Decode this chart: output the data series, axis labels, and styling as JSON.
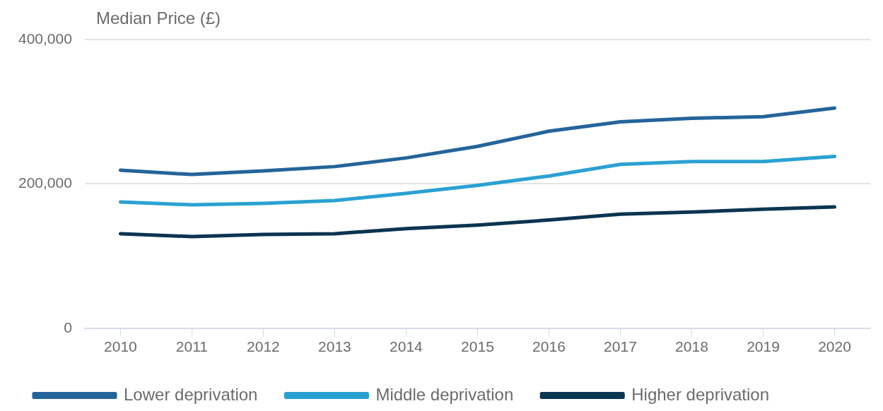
{
  "chart_data": {
    "type": "line",
    "ylabel": "Median Price (£)",
    "categories": [
      "2010",
      "2011",
      "2012",
      "2013",
      "2014",
      "2015",
      "2016",
      "2017",
      "2018",
      "2019",
      "2020"
    ],
    "series": [
      {
        "name": "Lower deprivation",
        "color": "#24649a",
        "values": [
          219000,
          213000,
          218000,
          224000,
          236000,
          252000,
          273000,
          286000,
          291000,
          293000,
          305000
        ]
      },
      {
        "name": "Middle deprivation",
        "color": "#2aa1d3",
        "values": [
          175000,
          171000,
          173000,
          177000,
          187000,
          198000,
          211000,
          227000,
          231000,
          231000,
          238000
        ]
      },
      {
        "name": "Higher deprivation",
        "color": "#0b3550",
        "values": [
          131000,
          127000,
          130000,
          131000,
          138000,
          143000,
          150000,
          158000,
          161000,
          165000,
          168000
        ]
      }
    ],
    "ylim": [
      0,
      400000
    ],
    "yticks": [
      {
        "value": 0,
        "label": "0"
      },
      {
        "value": 200000,
        "label": "200,000"
      },
      {
        "value": 400000,
        "label": "400,000"
      }
    ],
    "grid": "y",
    "legend": "bottom",
    "marker": "none",
    "line_style": "solid"
  }
}
